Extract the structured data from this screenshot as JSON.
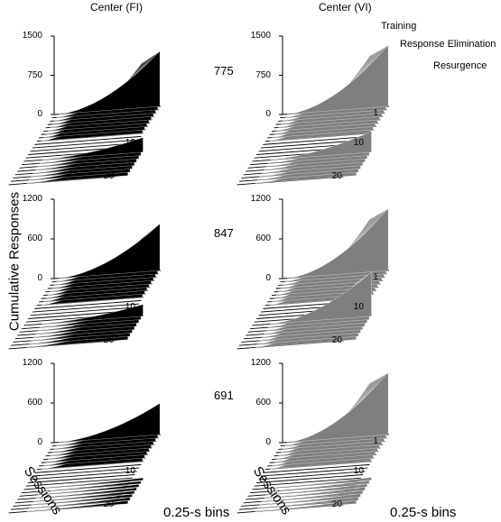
{
  "columns": [
    "Center (FI)",
    "Center (VI)"
  ],
  "y_axis_label": "Cumulative Responses",
  "sessions_label": "Sessions",
  "bins_label": "0.25-s bins",
  "annotations": [
    "Training",
    "Response Elimination",
    "Resurgence"
  ],
  "colors": {
    "FI": "#000000",
    "VI": "#7f7f7f"
  },
  "chart_data": [
    {
      "type": "area",
      "subject": "775",
      "condition": "Center (FI)",
      "yticks": [
        "0",
        "750",
        "1500"
      ],
      "ylim": [
        0,
        1500
      ],
      "session_ticks": [
        "1",
        "10",
        "20"
      ],
      "phases": [
        {
          "name": "Training",
          "peak": 1350
        },
        {
          "name": "Response Elimination",
          "peak": 0
        },
        {
          "name": "Resurgence",
          "peak": 350
        }
      ]
    },
    {
      "type": "area",
      "subject": "775",
      "condition": "Center (VI)",
      "yticks": [
        "0",
        "750",
        "1500"
      ],
      "ylim": [
        0,
        1500
      ],
      "session_ticks": [
        "1",
        "10",
        "20"
      ],
      "phases": [
        {
          "name": "Training",
          "peak": 1500
        },
        {
          "name": "Response Elimination",
          "peak": 0
        },
        {
          "name": "Resurgence",
          "peak": 500
        }
      ]
    },
    {
      "type": "area",
      "subject": "847",
      "condition": "Center (FI)",
      "yticks": [
        "0",
        "600",
        "1200"
      ],
      "ylim": [
        0,
        1200
      ],
      "session_ticks": [
        "1",
        "10",
        "20"
      ],
      "phases": [
        {
          "name": "Training",
          "peak": 900
        },
        {
          "name": "Response Elimination",
          "peak": 0
        },
        {
          "name": "Resurgence",
          "peak": 220
        }
      ]
    },
    {
      "type": "area",
      "subject": "847",
      "condition": "Center (VI)",
      "yticks": [
        "0",
        "600",
        "1200"
      ],
      "ylim": [
        0,
        1200
      ],
      "session_ticks": [
        "1",
        "10",
        "20"
      ],
      "phases": [
        {
          "name": "Training",
          "peak": 1200
        },
        {
          "name": "Response Elimination",
          "peak": 0
        },
        {
          "name": "Resurgence",
          "peak": 850
        }
      ]
    },
    {
      "type": "area",
      "subject": "691",
      "condition": "Center (FI)",
      "yticks": [
        "0",
        "600",
        "1200"
      ],
      "ylim": [
        0,
        1200
      ],
      "session_ticks": [
        "1",
        "10",
        "20"
      ],
      "phases": [
        {
          "name": "Training",
          "peak": 600
        },
        {
          "name": "Response Elimination",
          "peak": 0
        },
        {
          "name": "Resurgence",
          "peak": 40
        }
      ]
    },
    {
      "type": "area",
      "subject": "691",
      "condition": "Center (VI)",
      "yticks": [
        "0",
        "600",
        "1200"
      ],
      "ylim": [
        0,
        1200
      ],
      "session_ticks": [
        "1",
        "10",
        "20"
      ],
      "phases": [
        {
          "name": "Training",
          "peak": 1200
        },
        {
          "name": "Response Elimination",
          "peak": 0
        },
        {
          "name": "Resurgence",
          "peak": 50
        }
      ]
    }
  ]
}
